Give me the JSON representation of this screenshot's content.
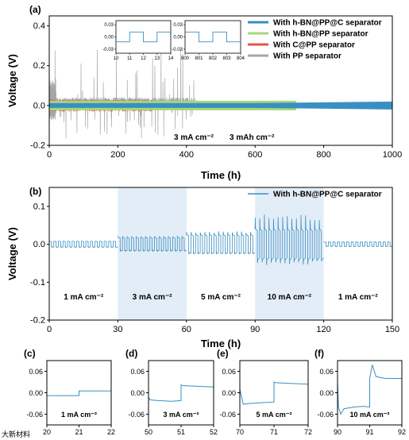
{
  "chart_data": [
    {
      "panel": "(a)",
      "type": "line",
      "xlabel": "Time (h)",
      "ylabel": "Voltage (V)",
      "xlim": [
        0,
        1000
      ],
      "ylim": [
        -0.2,
        0.45
      ],
      "xticks": [
        0,
        200,
        400,
        600,
        800,
        1000
      ],
      "yticks": [
        -0.2,
        0.0,
        0.2,
        0.4
      ],
      "xtick_labels": [
        "0",
        "200",
        "400",
        "600",
        "800",
        "1000"
      ],
      "ytick_labels": [
        "-0.2",
        "0.0",
        "0.2",
        "0.4"
      ],
      "legend_position": "top-right",
      "series": [
        {
          "name": "With h-BN@PP@C separator",
          "color": "#3a8fc2",
          "x": [
            0,
            1000
          ],
          "amplitude": [
            0.012,
            0.02
          ]
        },
        {
          "name": "With h-BN@PP separator",
          "color": "#a3d977",
          "x": [
            0,
            720
          ],
          "amplitude": [
            0.016,
            0.024
          ]
        },
        {
          "name": "With C@PP separator",
          "color": "#e8524a",
          "x": [
            0,
            300
          ],
          "amplitude": [
            0.02,
            0.035
          ]
        },
        {
          "name": "With PP separator",
          "color": "#a6a6a6",
          "x": [
            0,
            425
          ],
          "amplitude": [
            0.02,
            0.3
          ]
        }
      ],
      "annotations": [
        {
          "text": "3 mA cm⁻²"
        },
        {
          "text": "3 mAh cm⁻²"
        }
      ],
      "insets": [
        {
          "xlim": [
            10,
            14
          ],
          "ylim": [
            -0.03,
            0.03
          ],
          "xticks": [
            10,
            11,
            12,
            13,
            14
          ],
          "xtick_labels": [
            "10",
            "11",
            "12",
            "13",
            "14"
          ],
          "yticks": [
            -0.03,
            0.0,
            0.03
          ],
          "ytick_labels": [
            "-0.03",
            "0.00",
            "0.03"
          ],
          "x": [
            10,
            11,
            11,
            12,
            12,
            13,
            13,
            14
          ],
          "y": [
            -0.012,
            -0.012,
            0.012,
            0.012,
            -0.012,
            -0.012,
            0.012,
            0.012
          ]
        },
        {
          "xlim": [
            800,
            804
          ],
          "ylim": [
            -0.03,
            0.03
          ],
          "xticks": [
            800,
            801,
            802,
            803,
            804
          ],
          "xtick_labels": [
            "800",
            "801",
            "802",
            "803",
            "804"
          ],
          "yticks": [
            -0.03,
            0.0,
            0.03
          ],
          "ytick_labels": [
            "-0.03",
            "0.00",
            "0.03"
          ],
          "x": [
            800,
            801,
            801,
            802,
            802,
            803,
            803,
            804
          ],
          "y": [
            0.012,
            0.012,
            -0.012,
            -0.012,
            0.012,
            0.012,
            -0.012,
            -0.012
          ]
        }
      ]
    },
    {
      "panel": "(b)",
      "type": "line",
      "xlabel": "Time (h)",
      "ylabel": "Voltage (V)",
      "xlim": [
        0,
        150
      ],
      "ylim": [
        -0.2,
        0.15
      ],
      "xticks": [
        0,
        30,
        60,
        90,
        120,
        150
      ],
      "xtick_labels": [
        "0",
        "30",
        "60",
        "90",
        "120",
        "150"
      ],
      "yticks": [
        -0.2,
        -0.1,
        0.0,
        0.1
      ],
      "ytick_labels": [
        "-0.2",
        "-0.1",
        "0.0",
        "0.1"
      ],
      "legend_position": "top-right",
      "series": [
        {
          "name": "With h-BN@PP@C separator",
          "color": "#3a8fc2"
        }
      ],
      "segments": [
        {
          "label": "1 mA cm⁻²",
          "x": [
            0,
            30
          ],
          "amplitude": 0.008,
          "peak": 0.008,
          "shaded": false
        },
        {
          "label": "3 mA cm⁻²",
          "x": [
            30,
            60
          ],
          "amplitude": 0.018,
          "peak": 0.022,
          "shaded": true
        },
        {
          "label": "5 mA cm⁻²",
          "x": [
            60,
            90
          ],
          "amplitude": 0.025,
          "peak": 0.035,
          "shaded": false
        },
        {
          "label": "10 mA cm⁻²",
          "x": [
            90,
            120
          ],
          "amplitude": 0.04,
          "peak": 0.08,
          "shaded": true
        },
        {
          "label": "1 mA cm⁻²",
          "x": [
            120,
            150
          ],
          "amplitude": 0.006,
          "peak": 0.006,
          "shaded": false
        }
      ],
      "shade_color": "#e3edf7"
    },
    {
      "panel": "(c)",
      "type": "line",
      "label": "1 mA cm⁻²",
      "xlim": [
        20,
        22
      ],
      "ylim": [
        -0.09,
        0.09
      ],
      "xticks": [
        20,
        21,
        22
      ],
      "xtick_labels": [
        "20",
        "21",
        "22"
      ],
      "yticks": [
        -0.06,
        0.0,
        0.06
      ],
      "ytick_labels": [
        "-0.06",
        "0.00",
        "0.06"
      ],
      "x": [
        20,
        21,
        21,
        22
      ],
      "y": [
        -0.008,
        -0.008,
        0.005,
        0.005
      ]
    },
    {
      "panel": "(d)",
      "type": "line",
      "label": "3 mA cm⁻²",
      "xlim": [
        50,
        52
      ],
      "ylim": [
        -0.09,
        0.09
      ],
      "xticks": [
        50,
        51,
        52
      ],
      "xtick_labels": [
        "50",
        "51",
        "52"
      ],
      "yticks": [
        -0.06,
        0.0,
        0.06
      ],
      "ytick_labels": [
        "-0.06",
        "0.00",
        "0.06"
      ],
      "x": [
        50,
        50.05,
        50.3,
        50.7,
        51,
        51,
        51.05,
        51.5,
        52
      ],
      "y": [
        -0.012,
        -0.02,
        -0.022,
        -0.024,
        -0.022,
        0.022,
        0.02,
        0.018,
        0.016
      ]
    },
    {
      "panel": "(e)",
      "type": "line",
      "label": "5 mA cm⁻²",
      "xlim": [
        70,
        72
      ],
      "ylim": [
        -0.09,
        0.09
      ],
      "xticks": [
        70,
        71,
        72
      ],
      "xtick_labels": [
        "70",
        "71",
        "72"
      ],
      "yticks": [
        -0.06,
        0.0,
        0.06
      ],
      "ytick_labels": [
        "-0.06",
        "0.00",
        "0.06"
      ],
      "x": [
        70,
        70.1,
        70.3,
        70.6,
        71,
        71,
        71.05,
        71.5,
        72
      ],
      "y": [
        0.01,
        -0.032,
        -0.03,
        -0.028,
        -0.026,
        0.03,
        0.028,
        0.026,
        0.024
      ]
    },
    {
      "panel": "(f)",
      "type": "line",
      "label": "10 mA cm⁻²",
      "xlim": [
        90,
        92
      ],
      "ylim": [
        -0.09,
        0.09
      ],
      "xticks": [
        90,
        91,
        92
      ],
      "xtick_labels": [
        "90",
        "91",
        "92"
      ],
      "yticks": [
        -0.06,
        0.0,
        0.06
      ],
      "ytick_labels": [
        "-0.06",
        "0.00",
        "0.06"
      ],
      "x": [
        90,
        90.03,
        90.1,
        90.2,
        90.5,
        90.8,
        91,
        91,
        91.08,
        91.2,
        91.5,
        92
      ],
      "y": [
        0.03,
        -0.04,
        -0.06,
        -0.045,
        -0.04,
        -0.038,
        -0.04,
        0.04,
        0.078,
        0.045,
        0.04,
        0.04
      ]
    }
  ],
  "watermark": "大新材料"
}
